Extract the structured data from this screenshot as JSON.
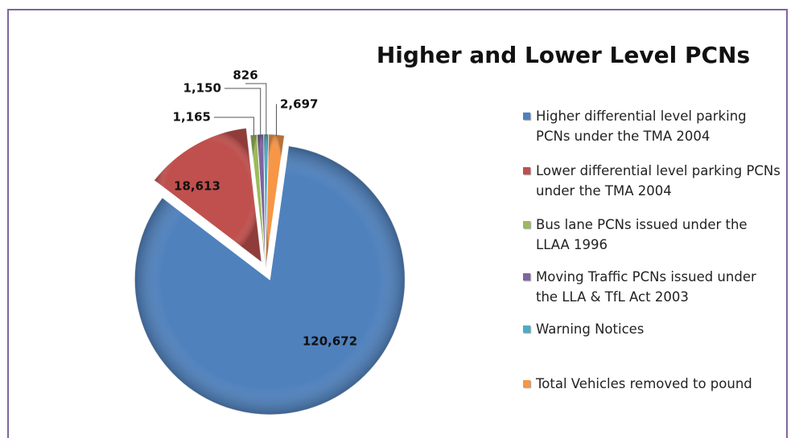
{
  "chart_data": {
    "type": "pie",
    "title": "Higher and Lower Level PCNs",
    "categories": [
      "Higher differential level parking PCNs under the TMA 2004",
      "Lower differential level parking PCNs under the TMA 2004",
      "Bus lane PCNs issued under the LLAA 1996",
      "Moving Traffic PCNs issued under the LLA & TfL Act 2003",
      "Warning Notices",
      "Total Vehicles removed to pound"
    ],
    "values": [
      120672,
      18613,
      1165,
      1150,
      826,
      2697
    ],
    "value_labels": [
      "120,672",
      "18,613",
      "1,165",
      "1,150",
      "826",
      "2,697"
    ],
    "colors": [
      "#4f81bd",
      "#c0504d",
      "#9bbb59",
      "#8064a2",
      "#4bacc6",
      "#f79646"
    ]
  }
}
